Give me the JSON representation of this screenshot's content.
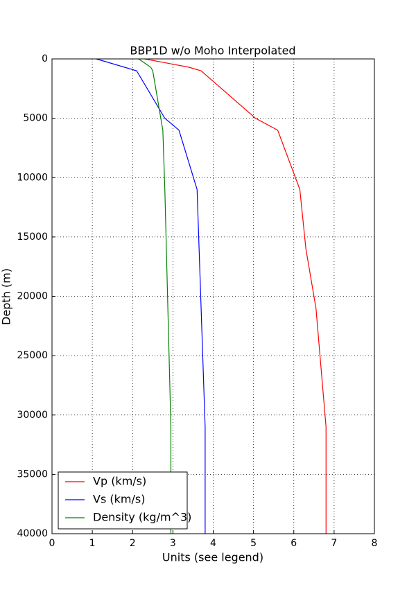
{
  "chart_data": {
    "type": "line",
    "title": "BBP1D w/o Moho Interpolated",
    "xlabel": "Units (see legend)",
    "ylabel": "Depth (m)",
    "xlim": [
      0,
      8
    ],
    "xticks": [
      0,
      1,
      2,
      3,
      4,
      5,
      6,
      7,
      8
    ],
    "ylim": [
      40000,
      0
    ],
    "yticks": [
      0,
      5000,
      10000,
      15000,
      20000,
      25000,
      30000,
      35000,
      40000
    ],
    "grid": true,
    "legend": "lower left",
    "series": [
      {
        "name": "Vp (km/s)",
        "color": "#ff0000",
        "x": [
          2.3,
          3.4,
          3.7,
          5.05,
          5.6,
          6.15,
          6.3,
          6.55,
          6.8,
          6.8
        ],
        "y": [
          0,
          700,
          1000,
          5000,
          6000,
          11000,
          16000,
          21000,
          31000,
          40000
        ]
      },
      {
        "name": "Vs (km/s)",
        "color": "#0000ff",
        "x": [
          1.1,
          2.1,
          2.8,
          3.15,
          3.6,
          3.8,
          3.8
        ],
        "y": [
          0,
          1000,
          5000,
          6000,
          11000,
          31000,
          40000
        ]
      },
      {
        "name": "Density (kg/m^3)",
        "color": "#008000",
        "x": [
          2.15,
          2.45,
          2.5,
          2.75,
          2.8,
          2.95,
          2.95
        ],
        "y": [
          0,
          700,
          1000,
          6000,
          11000,
          31000,
          40000
        ]
      }
    ]
  }
}
